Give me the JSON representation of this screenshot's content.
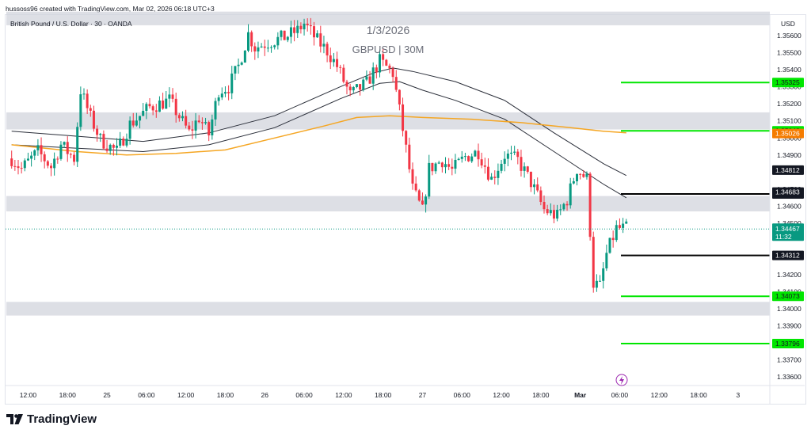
{
  "credit": "hussoss96 created with TradingView.com, Mar 02, 2026 06:18 UTC+3",
  "symbol_title": "British Pound / U.S. Dollar · 30 · OANDA",
  "annotation_date": "1/3/2026",
  "annotation_pair": "GBPUSD | 30M",
  "currency": "USD",
  "brand": "TradingView",
  "colors": {
    "up": "#089981",
    "down": "#f23645",
    "ma_orange": "#f5a623",
    "ma_dark": "#2a2e39",
    "green_level": "#00e600",
    "black_level": "#000000",
    "zone": "#d1d4dc"
  },
  "chart_data": {
    "type": "candlestick",
    "y_axis": {
      "ylim": [
        1.3355,
        1.3572
      ],
      "ticks": [
        1.356,
        1.355,
        1.354,
        1.353,
        1.352,
        1.351,
        1.35,
        1.349,
        1.347,
        1.346,
        1.345,
        1.342,
        1.341,
        1.34,
        1.339,
        1.337,
        1.336
      ],
      "tick_labels": [
        "1.35600",
        "1.35500",
        "1.35400",
        "1.35300",
        "1.35200",
        "1.35100",
        "1.35000",
        "1.34900",
        "1.34700",
        "1.34600",
        "1.34500",
        "1.34200",
        "1.34100",
        "1.34000",
        "1.33900",
        "1.33700",
        "1.33600"
      ]
    },
    "x_axis": {
      "labels": [
        "12:00",
        "18:00",
        "25",
        "06:00",
        "12:00",
        "18:00",
        "26",
        "06:00",
        "12:00",
        "18:00",
        "27",
        "06:00",
        "12:00",
        "18:00",
        "Mar",
        "06:00",
        "12:00",
        "18:00",
        "3"
      ],
      "label_bars": [
        5,
        17,
        29,
        41,
        53,
        65,
        77,
        89,
        101,
        113,
        125,
        137,
        149,
        161,
        173,
        185,
        197,
        209,
        221
      ]
    },
    "candles_start_bar": 0,
    "candles_end_bar": 187,
    "anchors_close": [
      [
        0,
        1.3488
      ],
      [
        3,
        1.3482
      ],
      [
        8,
        1.3492
      ],
      [
        12,
        1.3483
      ],
      [
        15,
        1.3496
      ],
      [
        19,
        1.3488
      ],
      [
        21,
        1.3528
      ],
      [
        24,
        1.3512
      ],
      [
        27,
        1.3499
      ],
      [
        32,
        1.3492
      ],
      [
        36,
        1.3508
      ],
      [
        42,
        1.3518
      ],
      [
        48,
        1.3522
      ],
      [
        54,
        1.3503
      ],
      [
        57,
        1.3512
      ],
      [
        60,
        1.3502
      ],
      [
        63,
        1.3528
      ],
      [
        66,
        1.353
      ],
      [
        69,
        1.3542
      ],
      [
        72,
        1.3561
      ],
      [
        74,
        1.3553
      ],
      [
        78,
        1.3556
      ],
      [
        83,
        1.3559
      ],
      [
        87,
        1.3563
      ],
      [
        89,
        1.3567
      ],
      [
        93,
        1.3557
      ],
      [
        96,
        1.3551
      ],
      [
        99,
        1.3542
      ],
      [
        103,
        1.3525
      ],
      [
        108,
        1.3532
      ],
      [
        112,
        1.3545
      ],
      [
        116,
        1.3538
      ],
      [
        119,
        1.3505
      ],
      [
        122,
        1.347
      ],
      [
        125,
        1.3457
      ],
      [
        127,
        1.3482
      ],
      [
        131,
        1.3487
      ],
      [
        134,
        1.3481
      ],
      [
        138,
        1.3489
      ],
      [
        142,
        1.3492
      ],
      [
        146,
        1.3476
      ],
      [
        150,
        1.349
      ],
      [
        154,
        1.3487
      ],
      [
        158,
        1.3474
      ],
      [
        162,
        1.3458
      ],
      [
        166,
        1.3454
      ],
      [
        169,
        1.3464
      ],
      [
        172,
        1.3482
      ],
      [
        175,
        1.3476
      ],
      [
        177,
        1.3415
      ],
      [
        179,
        1.3413
      ],
      [
        181,
        1.3432
      ],
      [
        184,
        1.3447
      ],
      [
        187,
        1.3447
      ]
    ],
    "moving_averages": [
      {
        "color": "#2a2e39",
        "points": [
          [
            0,
            1.3504
          ],
          [
            20,
            1.3501
          ],
          [
            40,
            1.3498
          ],
          [
            60,
            1.3503
          ],
          [
            80,
            1.3513
          ],
          [
            100,
            1.353
          ],
          [
            110,
            1.3538
          ],
          [
            116,
            1.3541
          ],
          [
            122,
            1.3539
          ],
          [
            135,
            1.3533
          ],
          [
            150,
            1.3522
          ],
          [
            165,
            1.3503
          ],
          [
            180,
            1.3485
          ],
          [
            187,
            1.3478
          ]
        ]
      },
      {
        "color": "#2a2e39",
        "points": [
          [
            0,
            1.3496
          ],
          [
            20,
            1.3494
          ],
          [
            40,
            1.3492
          ],
          [
            60,
            1.3496
          ],
          [
            80,
            1.3506
          ],
          [
            100,
            1.3523
          ],
          [
            112,
            1.3532
          ],
          [
            118,
            1.3533
          ],
          [
            125,
            1.3528
          ],
          [
            135,
            1.3522
          ],
          [
            150,
            1.3511
          ],
          [
            165,
            1.3492
          ],
          [
            180,
            1.3473
          ],
          [
            187,
            1.3465
          ]
        ]
      },
      {
        "color": "#f5a623",
        "points": [
          [
            0,
            1.3496
          ],
          [
            20,
            1.3492
          ],
          [
            35,
            1.349
          ],
          [
            50,
            1.3491
          ],
          [
            65,
            1.3493
          ],
          [
            80,
            1.35
          ],
          [
            95,
            1.3507
          ],
          [
            105,
            1.3512
          ],
          [
            115,
            1.3513
          ],
          [
            125,
            1.3512
          ],
          [
            140,
            1.3511
          ],
          [
            155,
            1.3509
          ],
          [
            170,
            1.3506
          ],
          [
            180,
            1.3504
          ],
          [
            187,
            1.3503
          ]
        ]
      }
    ],
    "zones": [
      [
        1.3566,
        1.3574
      ],
      [
        1.3505,
        1.3515
      ],
      [
        1.3457,
        1.3466
      ],
      [
        1.3396,
        1.3404
      ]
    ],
    "levels": [
      {
        "value": 1.35325,
        "label": "1.35325",
        "color": "#00e600"
      },
      {
        "value": 1.35042,
        "label": "1.35042",
        "color": "#00e600"
      },
      {
        "value": 1.34672,
        "label": "1.34672",
        "color": "#000000"
      },
      {
        "value": 1.34312,
        "label": "1.34312",
        "color": "#000000"
      },
      {
        "value": 1.34073,
        "label": "1.34073",
        "color": "#00e600"
      },
      {
        "value": 1.33796,
        "label": "1.33796",
        "color": "#00e600"
      }
    ],
    "axis_badges": [
      {
        "value": 1.34812,
        "label": "1.34812",
        "bg": "#131722",
        "fg": "#ffffff"
      },
      {
        "value": 1.35026,
        "label": "1.35026",
        "bg": "#f57c00",
        "fg": "#ffffff"
      },
      {
        "value": 1.34683,
        "label": "1.34683",
        "bg": "#131722",
        "fg": "#ffffff"
      }
    ],
    "current_price": {
      "value": 1.34467,
      "label": "1.34467",
      "countdown": "11:32",
      "bg": "#089981"
    }
  }
}
